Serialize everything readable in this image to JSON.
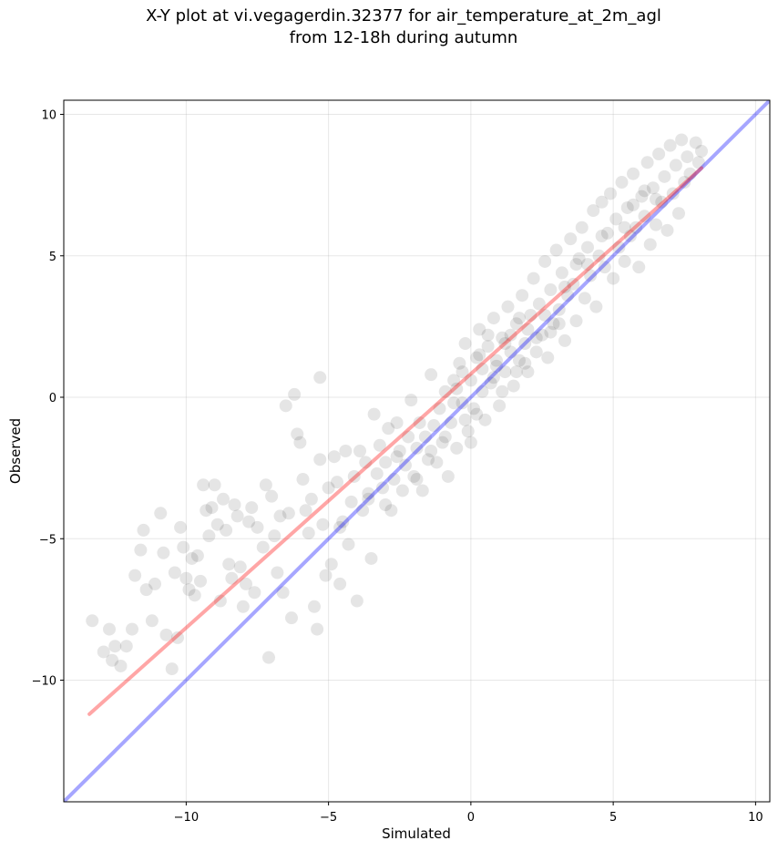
{
  "title_line1": "X-Y plot at vi.vegagerdin.32377 for air_temperature_at_2m_agl",
  "title_line2": "from 12-18h during autumn",
  "chart_data": {
    "type": "scatter",
    "xlabel": "Simulated",
    "ylabel": "Observed",
    "xlim": [
      -14.3,
      10.5
    ],
    "ylim": [
      -14.3,
      10.5
    ],
    "xticks": [
      -10,
      -5,
      0,
      5,
      10
    ],
    "yticks": [
      -10,
      -5,
      0,
      5,
      10
    ],
    "xtick_labels": [
      "−10",
      "−5",
      "0",
      "5",
      "10"
    ],
    "ytick_labels": [
      "−10",
      "−5",
      "0",
      "5",
      "10"
    ],
    "grid": true,
    "point_color": "#000000",
    "point_alpha": 0.1,
    "fit_line": {
      "color": "#ff0000",
      "alpha": 0.35,
      "x": [
        -13.4,
        8.1
      ],
      "y": [
        -11.2,
        8.1
      ]
    },
    "identity_line": {
      "color": "#0000ff",
      "alpha": 0.35,
      "x": [
        -14.3,
        10.5
      ],
      "y": [
        -14.3,
        10.5
      ]
    },
    "points": [
      [
        -13.3,
        -7.9
      ],
      [
        -12.9,
        -9.0
      ],
      [
        -12.7,
        -8.2
      ],
      [
        -12.6,
        -9.3
      ],
      [
        -12.3,
        -9.5
      ],
      [
        -12.5,
        -8.8
      ],
      [
        -12.1,
        -8.8
      ],
      [
        -11.8,
        -6.3
      ],
      [
        -11.9,
        -8.2
      ],
      [
        -11.6,
        -5.4
      ],
      [
        -11.5,
        -4.7
      ],
      [
        -11.4,
        -6.8
      ],
      [
        -11.1,
        -6.6
      ],
      [
        -11.2,
        -7.9
      ],
      [
        -10.9,
        -4.1
      ],
      [
        -10.8,
        -5.5
      ],
      [
        -10.7,
        -8.4
      ],
      [
        -10.5,
        -9.6
      ],
      [
        -10.4,
        -6.2
      ],
      [
        -10.3,
        -8.5
      ],
      [
        -10.2,
        -4.6
      ],
      [
        -10.1,
        -5.3
      ],
      [
        -10.0,
        -6.4
      ],
      [
        -9.9,
        -6.8
      ],
      [
        -9.8,
        -5.7
      ],
      [
        -9.7,
        -7.0
      ],
      [
        -9.6,
        -5.6
      ],
      [
        -9.5,
        -6.5
      ],
      [
        -9.4,
        -3.1
      ],
      [
        -9.3,
        -4.0
      ],
      [
        -9.2,
        -4.9
      ],
      [
        -9.1,
        -3.9
      ],
      [
        -9.0,
        -3.1
      ],
      [
        -8.9,
        -4.5
      ],
      [
        -8.8,
        -7.2
      ],
      [
        -8.7,
        -3.6
      ],
      [
        -8.6,
        -4.7
      ],
      [
        -8.5,
        -5.9
      ],
      [
        -8.4,
        -6.4
      ],
      [
        -8.3,
        -3.8
      ],
      [
        -8.2,
        -4.2
      ],
      [
        -8.1,
        -6.0
      ],
      [
        -8.0,
        -7.4
      ],
      [
        -7.9,
        -6.6
      ],
      [
        -7.8,
        -4.4
      ],
      [
        -7.7,
        -3.9
      ],
      [
        -7.6,
        -6.9
      ],
      [
        -7.5,
        -4.6
      ],
      [
        -7.3,
        -5.3
      ],
      [
        -7.2,
        -3.1
      ],
      [
        -7.1,
        -9.2
      ],
      [
        -7.0,
        -3.5
      ],
      [
        -6.9,
        -4.9
      ],
      [
        -6.8,
        -6.2
      ],
      [
        -6.7,
        -4.2
      ],
      [
        -6.6,
        -6.9
      ],
      [
        -6.5,
        -0.3
      ],
      [
        -6.4,
        -4.1
      ],
      [
        -6.3,
        -7.8
      ],
      [
        -6.2,
        0.1
      ],
      [
        -6.1,
        -1.3
      ],
      [
        -6.0,
        -1.6
      ],
      [
        -5.9,
        -2.9
      ],
      [
        -5.8,
        -4.0
      ],
      [
        -5.7,
        -4.8
      ],
      [
        -5.6,
        -3.6
      ],
      [
        -5.5,
        -7.4
      ],
      [
        -5.4,
        -8.2
      ],
      [
        -5.3,
        -2.2
      ],
      [
        -5.2,
        -4.5
      ],
      [
        -5.1,
        -6.3
      ],
      [
        -5.0,
        -3.2
      ],
      [
        -5.3,
        0.7
      ],
      [
        -4.9,
        -5.9
      ],
      [
        -4.8,
        -2.1
      ],
      [
        -4.7,
        -3.0
      ],
      [
        -4.6,
        -6.6
      ],
      [
        -4.5,
        -4.4
      ],
      [
        -4.4,
        -1.9
      ],
      [
        -4.3,
        -5.2
      ],
      [
        -4.2,
        -3.7
      ],
      [
        -4.1,
        -2.8
      ],
      [
        -4.0,
        -7.2
      ],
      [
        -3.9,
        -1.9
      ],
      [
        -3.8,
        -4.0
      ],
      [
        -3.7,
        -2.3
      ],
      [
        -3.6,
        -3.4
      ],
      [
        -3.5,
        -5.7
      ],
      [
        -3.4,
        -0.6
      ],
      [
        -3.3,
        -2.7
      ],
      [
        -3.2,
        -1.7
      ],
      [
        -3.1,
        -3.2
      ],
      [
        -3.0,
        -2.3
      ],
      [
        -2.9,
        -1.1
      ],
      [
        -2.8,
        -4.0
      ],
      [
        -2.7,
        -2.9
      ],
      [
        -2.6,
        -0.9
      ],
      [
        -2.5,
        -1.9
      ],
      [
        -2.4,
        -3.3
      ],
      [
        -2.3,
        -2.4
      ],
      [
        -2.2,
        -1.4
      ],
      [
        -2.1,
        -0.1
      ],
      [
        -2.0,
        -2.8
      ],
      [
        -1.9,
        -1.8
      ],
      [
        -1.8,
        -0.9
      ],
      [
        -1.7,
        -3.3
      ],
      [
        -1.6,
        -1.4
      ],
      [
        -1.5,
        -2.2
      ],
      [
        -1.4,
        0.8
      ],
      [
        -1.3,
        -1.0
      ],
      [
        -1.2,
        -2.3
      ],
      [
        -1.1,
        -0.4
      ],
      [
        -1.0,
        -1.6
      ],
      [
        -0.9,
        0.2
      ],
      [
        -0.8,
        -2.8
      ],
      [
        -0.7,
        -0.9
      ],
      [
        -0.6,
        0.6
      ],
      [
        -0.5,
        -1.8
      ],
      [
        -0.4,
        1.2
      ],
      [
        -0.3,
        -0.2
      ],
      [
        -0.2,
        1.9
      ],
      [
        -0.1,
        -1.2
      ],
      [
        0.0,
        0.6
      ],
      [
        0.1,
        -0.4
      ],
      [
        0.2,
        1.4
      ],
      [
        0.3,
        2.4
      ],
      [
        0.4,
        0.2
      ],
      [
        0.5,
        -0.8
      ],
      [
        0.6,
        1.8
      ],
      [
        0.7,
        0.5
      ],
      [
        0.8,
        2.8
      ],
      [
        0.9,
        1.1
      ],
      [
        1.0,
        -0.3
      ],
      [
        1.1,
        2.1
      ],
      [
        1.2,
        0.9
      ],
      [
        1.3,
        3.2
      ],
      [
        1.4,
        1.6
      ],
      [
        1.5,
        0.4
      ],
      [
        1.6,
        2.6
      ],
      [
        1.7,
        1.3
      ],
      [
        1.8,
        3.6
      ],
      [
        1.9,
        1.9
      ],
      [
        2.0,
        0.9
      ],
      [
        2.1,
        2.9
      ],
      [
        2.2,
        4.2
      ],
      [
        2.3,
        1.6
      ],
      [
        2.4,
        3.3
      ],
      [
        2.5,
        2.2
      ],
      [
        2.6,
        4.8
      ],
      [
        2.7,
        1.4
      ],
      [
        2.8,
        3.8
      ],
      [
        2.9,
        2.6
      ],
      [
        3.0,
        5.2
      ],
      [
        3.1,
        3.1
      ],
      [
        3.2,
        4.4
      ],
      [
        3.3,
        2.0
      ],
      [
        3.4,
        3.6
      ],
      [
        3.5,
        5.6
      ],
      [
        3.6,
        4.0
      ],
      [
        3.7,
        2.7
      ],
      [
        3.8,
        4.9
      ],
      [
        3.9,
        6.0
      ],
      [
        4.0,
        3.5
      ],
      [
        4.1,
        5.3
      ],
      [
        4.2,
        4.3
      ],
      [
        4.3,
        6.6
      ],
      [
        4.4,
        3.2
      ],
      [
        4.5,
        5.0
      ],
      [
        4.6,
        6.9
      ],
      [
        4.7,
        4.6
      ],
      [
        4.8,
        5.8
      ],
      [
        4.9,
        7.2
      ],
      [
        5.0,
        4.2
      ],
      [
        5.1,
        6.3
      ],
      [
        5.2,
        5.3
      ],
      [
        5.3,
        7.6
      ],
      [
        5.4,
        4.8
      ],
      [
        5.5,
        6.7
      ],
      [
        5.6,
        5.7
      ],
      [
        5.7,
        7.9
      ],
      [
        5.8,
        6.0
      ],
      [
        5.9,
        4.6
      ],
      [
        6.0,
        7.1
      ],
      [
        6.1,
        6.4
      ],
      [
        6.2,
        8.3
      ],
      [
        6.3,
        5.4
      ],
      [
        6.4,
        7.4
      ],
      [
        6.5,
        6.1
      ],
      [
        6.6,
        8.6
      ],
      [
        6.7,
        6.9
      ],
      [
        6.8,
        7.8
      ],
      [
        6.9,
        5.9
      ],
      [
        7.0,
        8.9
      ],
      [
        7.1,
        7.2
      ],
      [
        7.2,
        8.2
      ],
      [
        7.3,
        6.5
      ],
      [
        7.4,
        9.1
      ],
      [
        7.5,
        7.6
      ],
      [
        7.6,
        8.5
      ],
      [
        7.7,
        7.9
      ],
      [
        7.9,
        9.0
      ],
      [
        8.0,
        8.3
      ],
      [
        8.1,
        8.7
      ],
      [
        -0.5,
        0.3
      ],
      [
        0.2,
        -0.6
      ],
      [
        0.8,
        0.7
      ],
      [
        1.2,
        1.9
      ],
      [
        -0.9,
        -1.4
      ],
      [
        1.6,
        0.9
      ],
      [
        2.0,
        2.4
      ],
      [
        0.4,
        1.0
      ],
      [
        -0.2,
        -0.8
      ],
      [
        1.4,
        2.2
      ],
      [
        2.6,
        2.9
      ],
      [
        -1.4,
        -1.9
      ],
      [
        0.9,
        1.3
      ],
      [
        3.3,
        3.9
      ],
      [
        1.7,
        2.8
      ],
      [
        -0.6,
        -0.2
      ],
      [
        0.0,
        -1.6
      ],
      [
        2.3,
        2.1
      ],
      [
        3.7,
        4.7
      ],
      [
        -1.9,
        -2.9
      ],
      [
        0.6,
        2.2
      ],
      [
        1.1,
        0.2
      ],
      [
        4.6,
        5.7
      ],
      [
        5.4,
        6.0
      ],
      [
        6.1,
        7.3
      ],
      [
        2.8,
        2.3
      ],
      [
        -2.6,
        -2.1
      ],
      [
        -3.6,
        -3.6
      ],
      [
        -4.6,
        -4.6
      ],
      [
        -3.0,
        -3.8
      ],
      [
        0.3,
        1.5
      ],
      [
        1.9,
        1.2
      ],
      [
        -0.3,
        0.9
      ],
      [
        3.1,
        2.6
      ],
      [
        4.1,
        4.7
      ],
      [
        5.7,
        6.8
      ],
      [
        6.5,
        7.0
      ]
    ]
  }
}
